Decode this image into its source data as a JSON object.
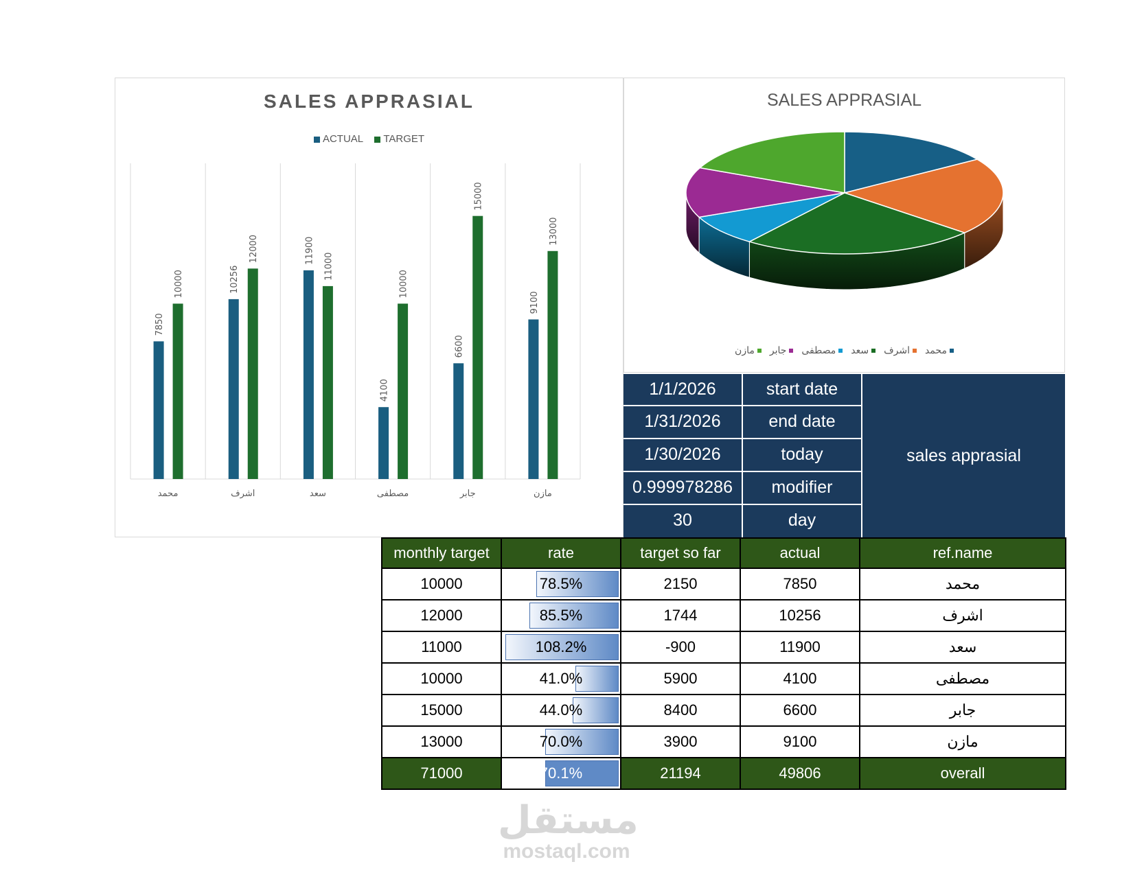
{
  "colors": {
    "actual": "#1a5e80",
    "target": "#1e6e2e",
    "header_green": "#2e5718",
    "info_navy": "#1b3a5c",
    "rate_bar": "#5f8ac6"
  },
  "chart_data": [
    {
      "type": "bar",
      "title": "SALES APPRASIAL",
      "categories": [
        "محمد",
        "اشرف",
        "سعد",
        "مصطفى",
        "جابر",
        "مازن"
      ],
      "series": [
        {
          "name": "ACTUAL",
          "values": [
            7850,
            10256,
            11900,
            4100,
            6600,
            9100
          ]
        },
        {
          "name": "TARGET",
          "values": [
            10000,
            12000,
            11000,
            10000,
            15000,
            13000
          ]
        }
      ],
      "ylim": [
        0,
        18000
      ],
      "legend": "top",
      "grid": "vertical category lines"
    },
    {
      "type": "pie",
      "title": "SALES APPRASIAL",
      "labels": [
        "محمد",
        "اشرف",
        "سعد",
        "مصطفى",
        "جابر",
        "مازن"
      ],
      "values": [
        7850,
        10256,
        11900,
        4100,
        6600,
        9100
      ],
      "slice_colors": [
        "#175f86",
        "#e57230",
        "#1b6e24",
        "#139ad2",
        "#9b2a93",
        "#4ea72d"
      ],
      "legend": "bottom",
      "style": "3d"
    }
  ],
  "info": {
    "rows": [
      {
        "value": "1/1/2026",
        "label": "start date"
      },
      {
        "value": "1/31/2026",
        "label": "end date"
      },
      {
        "value": "1/30/2026",
        "label": "today"
      },
      {
        "value": "0.999978286",
        "label": "modifier"
      },
      {
        "value": "30",
        "label": "day"
      }
    ],
    "title": "sales apprasial"
  },
  "table": {
    "headers": [
      "monthly target",
      "rate",
      "target so far",
      "actual",
      "ref.name"
    ],
    "rows": [
      {
        "monthly_target": "10000",
        "rate": "78.5%",
        "rate_value": 0.785,
        "target_so_far": "2150",
        "actual": "7850",
        "name": "محمد"
      },
      {
        "monthly_target": "12000",
        "rate": "85.5%",
        "rate_value": 0.855,
        "target_so_far": "1744",
        "actual": "10256",
        "name": "اشرف"
      },
      {
        "monthly_target": "11000",
        "rate": "108.2%",
        "rate_value": 1.082,
        "target_so_far": "-900",
        "actual": "11900",
        "name": "سعد"
      },
      {
        "monthly_target": "10000",
        "rate": "41.0%",
        "rate_value": 0.41,
        "target_so_far": "5900",
        "actual": "4100",
        "name": "مصطفى"
      },
      {
        "monthly_target": "15000",
        "rate": "44.0%",
        "rate_value": 0.44,
        "target_so_far": "8400",
        "actual": "6600",
        "name": "جابر"
      },
      {
        "monthly_target": "13000",
        "rate": "70.0%",
        "rate_value": 0.7,
        "target_so_far": "3900",
        "actual": "9100",
        "name": "مازن"
      }
    ],
    "total": {
      "monthly_target": "71000",
      "rate": "70.1%",
      "rate_value": 0.701,
      "target_so_far": "21194",
      "actual": "49806",
      "name": "overall"
    }
  },
  "watermark": {
    "arabic": "مستقل",
    "latin": "mostaql.com"
  }
}
